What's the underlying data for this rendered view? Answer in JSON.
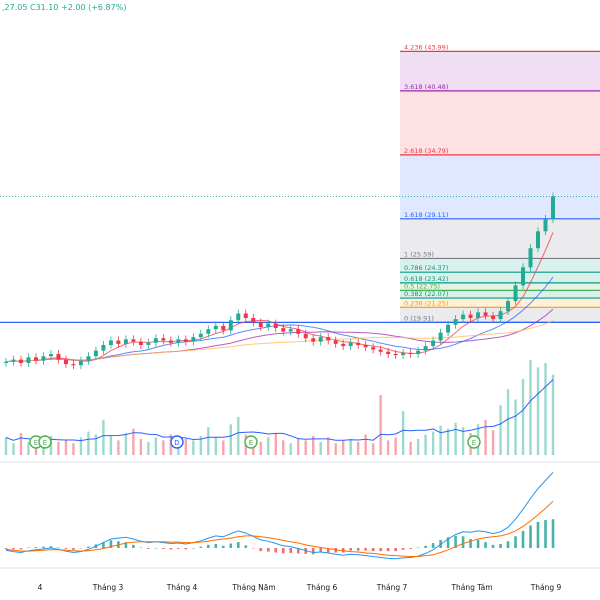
{
  "header": {
    "ohlc_text": ",27.05  C31.10  +2.00 (+6.87%)",
    "up_color": "#22ab94",
    "down_color": "#f23645"
  },
  "fib_levels": [
    {
      "label": "4.236 (43.99)",
      "value": 43.99,
      "color": "#f23645"
    },
    {
      "label": "3.618 (40.48)",
      "value": 40.48,
      "color": "#9c27b0"
    },
    {
      "label": "2.618 (34.79)",
      "value": 34.79,
      "color": "#f23645"
    },
    {
      "label": "1.618 (29.11)",
      "value": 29.11,
      "color": "#2962ff"
    },
    {
      "label": "1 (25.59)",
      "value": 25.59,
      "color": "#787b86"
    },
    {
      "label": "0.786 (24.37)",
      "value": 24.37,
      "color": "#089981"
    },
    {
      "label": "0.618 (23.42)",
      "value": 23.42,
      "color": "#089981"
    },
    {
      "label": "0.5 (22.75)",
      "value": 22.75,
      "color": "#4caf50"
    },
    {
      "label": "0.382 (22.07)",
      "value": 22.07,
      "color": "#089981"
    },
    {
      "label": "0.236 (21.25)",
      "value": 21.25,
      "color": "#ff9800"
    },
    {
      "label": "0 (19.91)",
      "value": 19.91,
      "color": "#787b86"
    }
  ],
  "x_axis": {
    "labels": [
      "4",
      "Tháng 3",
      "Tháng 4",
      "Tháng Năm",
      "Tháng 6",
      "Tháng 7",
      "Tháng Tám",
      "Tháng 9"
    ]
  },
  "event_markers": [
    {
      "glyph": "E",
      "color": "#4caf50"
    },
    {
      "glyph": "E",
      "color": "#4caf50"
    },
    {
      "glyph": "D",
      "color": "#2962ff"
    },
    {
      "glyph": "E",
      "color": "#4caf50"
    },
    {
      "glyph": "E",
      "color": "#4caf50"
    }
  ],
  "chart_data": {
    "type": "candlestick",
    "x_labels": [
      "4",
      "Tháng 3",
      "Tháng 4",
      "Tháng Năm",
      "Tháng 6",
      "Tháng 7",
      "Tháng Tám",
      "Tháng 9"
    ],
    "closes": [
      16.4,
      16.6,
      16.3,
      16.8,
      16.5,
      16.9,
      17.1,
      16.6,
      16.2,
      16.1,
      16.5,
      16.9,
      17.4,
      17.9,
      18.3,
      18.0,
      18.4,
      18.2,
      17.9,
      18.1,
      18.5,
      18.3,
      18.1,
      18.4,
      18.2,
      18.6,
      18.9,
      19.3,
      19.6,
      19.2,
      20.1,
      20.7,
      20.3,
      19.9,
      19.5,
      19.8,
      19.4,
      19.1,
      19.3,
      18.9,
      18.5,
      18.2,
      18.6,
      18.3,
      18.0,
      17.8,
      18.1,
      17.9,
      17.7,
      17.5,
      17.3,
      17.1,
      17.0,
      17.2,
      17.1,
      17.4,
      17.8,
      18.3,
      19.0,
      19.7,
      20.2,
      20.6,
      20.3,
      20.8,
      20.5,
      20.2,
      20.9,
      21.8,
      23.2,
      24.8,
      26.5,
      28.0,
      29.1,
      31.1
    ],
    "volumes": [
      1.2,
      0.8,
      1.5,
      0.9,
      1.1,
      0.7,
      1.3,
      0.9,
      1.0,
      0.8,
      1.2,
      1.6,
      1.4,
      2.4,
      1.3,
      1.0,
      1.5,
      1.8,
      1.1,
      0.9,
      1.2,
      1.0,
      1.4,
      0.8,
      1.1,
      1.0,
      1.3,
      1.9,
      1.2,
      1.0,
      2.1,
      2.6,
      1.4,
      1.1,
      0.9,
      1.2,
      1.5,
      1.0,
      0.8,
      1.1,
      1.0,
      1.3,
      0.9,
      1.2,
      0.8,
      1.0,
      1.1,
      0.9,
      1.4,
      0.8,
      4.1,
      1.0,
      1.2,
      3.0,
      0.9,
      1.1,
      1.4,
      1.6,
      2.0,
      1.8,
      2.2,
      1.9,
      1.5,
      2.1,
      2.4,
      1.7,
      3.4,
      4.5,
      3.8,
      5.2,
      6.5,
      6.0,
      6.3,
      5.5
    ],
    "macd": [
      -0.05,
      -0.08,
      -0.1,
      -0.06,
      -0.04,
      -0.02,
      0.0,
      -0.03,
      -0.07,
      -0.1,
      -0.08,
      -0.03,
      0.04,
      0.12,
      0.2,
      0.22,
      0.24,
      0.2,
      0.15,
      0.12,
      0.14,
      0.12,
      0.1,
      0.11,
      0.09,
      0.12,
      0.16,
      0.22,
      0.27,
      0.25,
      0.32,
      0.38,
      0.33,
      0.26,
      0.18,
      0.15,
      0.1,
      0.05,
      0.03,
      -0.01,
      -0.06,
      -0.1,
      -0.09,
      -0.11,
      -0.14,
      -0.16,
      -0.14,
      -0.15,
      -0.17,
      -0.19,
      -0.21,
      -0.23,
      -0.24,
      -0.22,
      -0.21,
      -0.18,
      -0.12,
      -0.04,
      0.08,
      0.2,
      0.3,
      0.36,
      0.35,
      0.38,
      0.36,
      0.32,
      0.36,
      0.46,
      0.64,
      0.86,
      1.1,
      1.32,
      1.5,
      1.68
    ],
    "signal": [
      -0.03,
      -0.05,
      -0.07,
      -0.07,
      -0.06,
      -0.05,
      -0.04,
      -0.04,
      -0.05,
      -0.06,
      -0.07,
      -0.06,
      -0.04,
      -0.01,
      0.03,
      0.07,
      0.11,
      0.13,
      0.14,
      0.14,
      0.14,
      0.14,
      0.13,
      0.13,
      0.12,
      0.12,
      0.13,
      0.15,
      0.18,
      0.2,
      0.22,
      0.25,
      0.27,
      0.27,
      0.25,
      0.23,
      0.2,
      0.17,
      0.14,
      0.11,
      0.07,
      0.04,
      0.01,
      -0.01,
      -0.04,
      -0.06,
      -0.08,
      -0.09,
      -0.11,
      -0.12,
      -0.14,
      -0.16,
      -0.17,
      -0.18,
      -0.19,
      -0.19,
      -0.17,
      -0.15,
      -0.1,
      -0.04,
      0.03,
      0.1,
      0.15,
      0.2,
      0.23,
      0.25,
      0.27,
      0.31,
      0.38,
      0.48,
      0.6,
      0.74,
      0.88,
      1.04
    ],
    "ylim": [
      15.5,
      45
    ]
  }
}
